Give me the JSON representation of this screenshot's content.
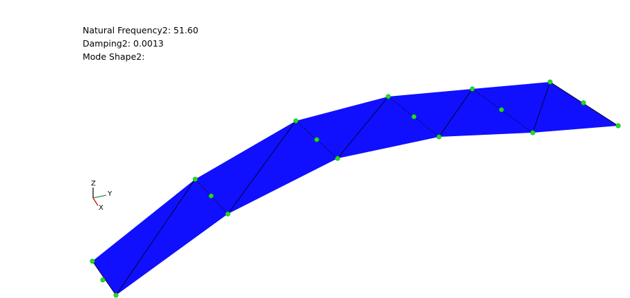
{
  "info": {
    "natural_frequency": "Natural Frequency2: 51.60",
    "damping": "Damping2: 0.0013",
    "mode_shape": "Mode Shape2:"
  },
  "axes": {
    "z": "Z",
    "y": "Y",
    "x": "X",
    "z_color": "#000000",
    "y_color": "#2e8b57",
    "x_color": "#cc0000"
  },
  "colors": {
    "surface": "#1010ff",
    "node": "#22dd22",
    "edge": "#000000"
  }
}
